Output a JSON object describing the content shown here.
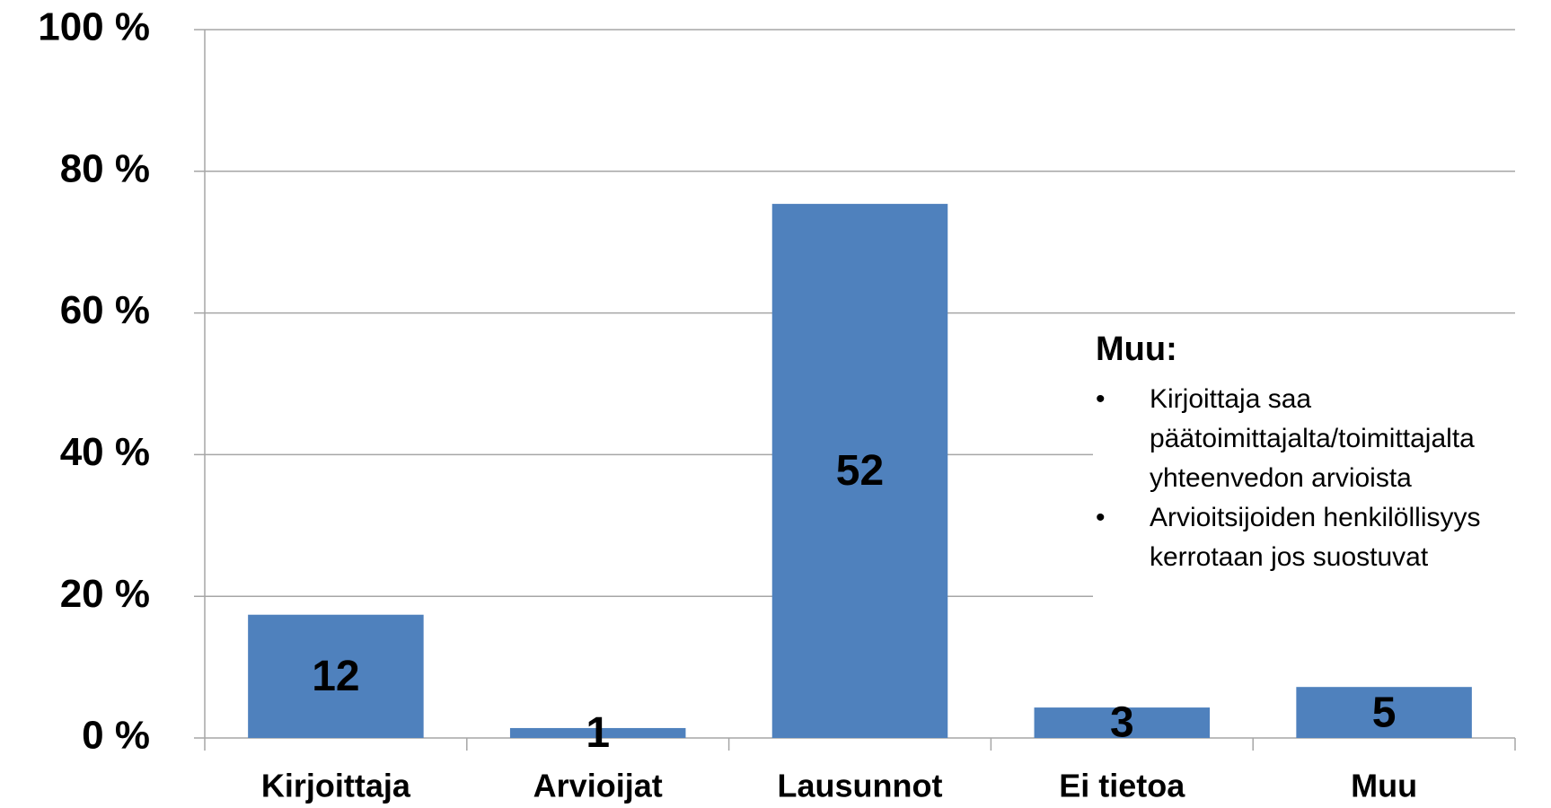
{
  "chart_data": {
    "type": "bar",
    "categories": [
      "Kirjoittaja",
      "Arvioijat",
      "Lausunnot",
      "Ei tietoa",
      "Muu"
    ],
    "values": [
      17.4,
      1.4,
      75.4,
      4.3,
      7.2
    ],
    "counts": [
      12,
      1,
      52,
      3,
      5
    ],
    "color": "#4f81bd",
    "ylim": [
      0,
      100
    ],
    "yticks": [
      {
        "value": 0,
        "label": "0 %"
      },
      {
        "value": 20,
        "label": "20 %"
      },
      {
        "value": 40,
        "label": "40 %"
      },
      {
        "value": 60,
        "label": "60 %"
      },
      {
        "value": 80,
        "label": "80 %"
      },
      {
        "value": 100,
        "label": "100 %"
      }
    ],
    "grid": true,
    "annotation": {
      "title": "Muu:",
      "items": [
        [
          "Kirjoittaja saa",
          "päätoimittajalta/toimittajalta",
          "yhteenvedon arvioista"
        ],
        [
          "Arvioitsijoiden henkilöllisyys",
          "kerrotaan jos suostuvat"
        ]
      ]
    }
  }
}
